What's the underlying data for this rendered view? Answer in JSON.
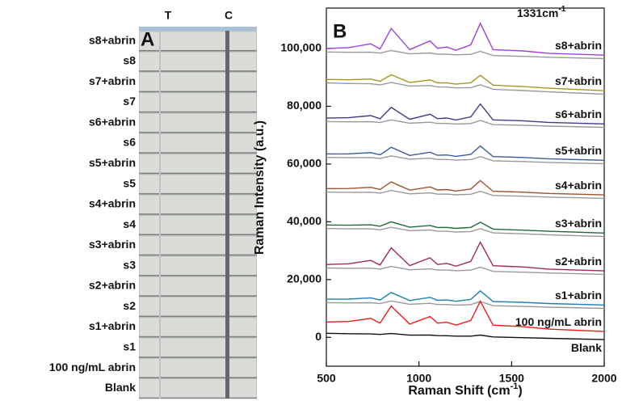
{
  "panel_a": {
    "panel_label": "A",
    "columns": [
      "T",
      "C"
    ],
    "rows": [
      "s8+abrin",
      "s8",
      "s7+abrin",
      "s7",
      "s6+abrin",
      "s6",
      "s5+abrin",
      "s5",
      "s4+abrin",
      "s4",
      "s3+abrin",
      "s3",
      "s2+abrin",
      "s2",
      "s1+abrin",
      "s1",
      "100 ng/mL abrin",
      "Blank"
    ]
  },
  "chart_data": {
    "type": "line",
    "panel_label": "B",
    "xlabel": {
      "text": "Raman Shift (cm",
      "sup": "-1",
      "end": ")"
    },
    "ylabel": "Raman Intensity (a.u.)",
    "annotation": {
      "text": "1331cm",
      "sup": "-1"
    },
    "xlim": [
      500,
      2000
    ],
    "xticks": [
      500,
      1000,
      1500,
      2000
    ],
    "ylim": [
      -10000,
      114000
    ],
    "yticks": [
      0,
      {
        "value": 20000,
        "label": "20,000"
      },
      {
        "value": 40000,
        "label": "40,000"
      },
      {
        "value": 60000,
        "label": "60,000"
      },
      {
        "value": 80000,
        "label": "80,000"
      },
      {
        "value": 100000,
        "label": "100,000"
      }
    ],
    "x": [
      500,
      620,
      740,
      790,
      850,
      950,
      1060,
      1100,
      1150,
      1200,
      1280,
      1331,
      1400,
      1560,
      1700,
      2000
    ],
    "series": [
      {
        "color": "#9a9a9a",
        "values": [
          98800,
          98700,
          98730,
          98410,
          99310,
          98160,
          98470,
          98030,
          98030,
          97810,
          97980,
          99030,
          97570,
          97290,
          96990,
          96500
        ]
      },
      {
        "name": "s8+abrin",
        "color": "#a040e0",
        "values": [
          100000,
          100320,
          101630,
          99860,
          106960,
          99610,
          102640,
          100080,
          100500,
          99430,
          101300,
          108730,
          99620,
          99170,
          98360,
          97700
        ]
      },
      {
        "color": "#9a9a9a",
        "values": [
          88100,
          87880,
          87800,
          87400,
          88250,
          86980,
          87180,
          86690,
          86640,
          86360,
          86450,
          87440,
          85910,
          85460,
          85010,
          84200
        ]
      },
      {
        "name": "s7+abrin",
        "color": "#a89620",
        "values": [
          89300,
          89180,
          89420,
          88660,
          90920,
          88240,
          89110,
          88100,
          88150,
          87660,
          88170,
          90740,
          87320,
          86830,
          86250,
          85400
        ]
      },
      {
        "color": "#9a9a9a",
        "values": [
          74700,
          74620,
          74680,
          74360,
          75280,
          74150,
          74480,
          74050,
          74060,
          73850,
          74040,
          75090,
          73650,
          73410,
          73130,
          72700
        ]
      },
      {
        "name": "s6+abrin",
        "color": "#3c3c88",
        "values": [
          75900,
          76040,
          76780,
          75690,
          79630,
          75480,
          77250,
          75700,
          75930,
          75270,
          76360,
          80790,
          75300,
          74970,
          74420,
          73900
        ]
      },
      {
        "color": "#9a9a9a",
        "values": [
          62300,
          62200,
          62250,
          61930,
          62840,
          61690,
          62010,
          61570,
          61580,
          61350,
          61540,
          62580,
          61130,
          60860,
          60570,
          60100
        ]
      },
      {
        "name": "s5+abrin",
        "color": "#3a5aa0",
        "values": [
          63500,
          63520,
          63950,
          63200,
          65790,
          62960,
          64080,
          63020,
          63150,
          62670,
          63360,
          66280,
          62580,
          62260,
          61820,
          61300
        ]
      },
      {
        "color": "#9a9a9a",
        "values": [
          50300,
          50200,
          50250,
          49930,
          50840,
          49690,
          50010,
          49570,
          49580,
          49350,
          49540,
          50580,
          49130,
          48860,
          48570,
          48100
        ]
      },
      {
        "name": "s4+abrin",
        "color": "#a0522d",
        "values": [
          51500,
          51520,
          51950,
          51200,
          53790,
          50960,
          52080,
          51020,
          51150,
          50670,
          51360,
          54280,
          50580,
          50260,
          49820,
          49300
        ]
      },
      {
        "color": "#9a9a9a",
        "values": [
          37700,
          37560,
          37550,
          37210,
          38100,
          36910,
          37190,
          36730,
          36720,
          36470,
          36620,
          37650,
          36170,
          35840,
          35490,
          34900
        ]
      },
      {
        "name": "s3+abrin",
        "color": "#1e6b3a",
        "values": [
          38900,
          38810,
          38950,
          38440,
          40000,
          38140,
          38740,
          38030,
          38070,
          37720,
          38070,
          39850,
          37470,
          37120,
          36710,
          36100
        ]
      },
      {
        "color": "#9a9a9a",
        "values": [
          24000,
          23900,
          23950,
          23630,
          24540,
          23390,
          23710,
          23270,
          23280,
          23050,
          23240,
          24280,
          22830,
          22560,
          22270,
          21800
        ]
      },
      {
        "name": "s2+abrin",
        "color": "#a0285a",
        "values": [
          25200,
          25470,
          26650,
          25050,
          30990,
          24810,
          27530,
          25220,
          25600,
          24620,
          26310,
          32980,
          24780,
          24360,
          23620,
          23000
        ]
      },
      {
        "color": "#9a9a9a",
        "values": [
          12000,
          11920,
          11980,
          11660,
          12580,
          11450,
          11780,
          11350,
          11360,
          11150,
          11340,
          12390,
          10950,
          10710,
          10430,
          10000
        ]
      },
      {
        "name": "s1+abrin",
        "color": "#1f7fb0",
        "values": [
          13200,
          13240,
          13680,
          12930,
          15530,
          12720,
          13850,
          12800,
          12930,
          12470,
          13160,
          16090,
          12400,
          12110,
          11680,
          11200
        ]
      },
      {
        "name": "100 ng/mL abrin",
        "color": "#f01818",
        "values": [
          5300,
          5490,
          6570,
          4930,
          10830,
          4580,
          7220,
          4880,
          5220,
          4210,
          5830,
          12470,
          4220,
          3690,
          2840,
          2000
        ]
      },
      {
        "name": "Blank",
        "color": "#111111",
        "values": [
          1400,
          1250,
          1170,
          1000,
          1310,
          760,
          790,
          580,
          540,
          400,
          410,
          780,
          140,
          -110,
          -350,
          -800
        ]
      }
    ]
  }
}
